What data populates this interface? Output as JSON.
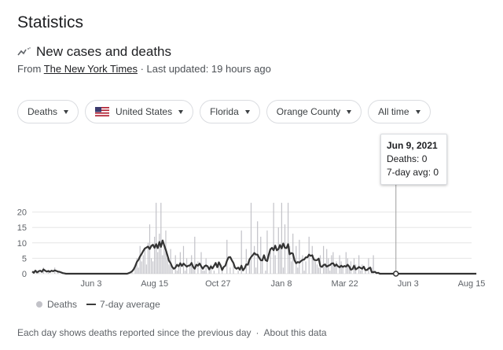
{
  "page": {
    "heading": "Statistics"
  },
  "section": {
    "title": "New cases and deaths",
    "source_prefix": "From",
    "source_name": "The New York Times",
    "updated": "· Last updated: 19 hours ago"
  },
  "filters": {
    "metric": "Deaths",
    "country": "United States",
    "state": "Florida",
    "county": "Orange County",
    "range": "All time"
  },
  "tooltip": {
    "date": "Jun 9, 2021",
    "deaths": "Deaths: 0",
    "avg": "7-day avg: 0"
  },
  "legend": {
    "deaths_label": "Deaths",
    "avg_label": "7-day average"
  },
  "footer": {
    "note": "Each day shows deaths reported since the previous day",
    "separator": "·",
    "about": "About this data"
  },
  "colors": {
    "bars": "#c2c2c8",
    "avg_line": "#333333",
    "grid": "#e6e6e6",
    "hover_line": "#9e9e9e"
  },
  "chart_data": {
    "type": "bar",
    "x_tick_labels": [
      "Jun 3",
      "Aug 15",
      "Oct 27",
      "Jan 8",
      "Mar 22",
      "Jun 3",
      "Aug 15"
    ],
    "y_ticks": [
      0,
      5,
      10,
      15,
      20
    ],
    "ylim": [
      0,
      23
    ],
    "grid": true,
    "legend_position": "bottom-left",
    "series": [
      {
        "name": "Deaths",
        "type": "bar",
        "values": [
          0,
          1,
          0,
          0,
          1,
          0,
          0,
          2,
          0,
          0,
          1,
          0,
          0,
          0,
          2,
          0,
          1,
          0,
          0,
          0,
          0,
          0,
          0,
          0,
          0,
          0,
          0,
          0,
          0,
          0,
          0,
          0,
          0,
          0,
          0,
          0,
          0,
          0,
          0,
          0,
          0,
          0,
          0,
          0,
          0,
          0,
          0,
          0,
          0,
          0,
          0,
          0,
          0,
          0,
          0,
          0,
          0,
          0,
          0,
          0,
          0,
          0,
          1,
          0,
          3,
          5,
          2,
          9,
          4,
          6,
          8,
          3,
          10,
          16,
          5,
          4,
          12,
          23,
          7,
          13,
          23,
          6,
          9,
          14,
          5,
          3,
          8,
          2,
          0,
          6,
          1,
          2,
          7,
          0,
          9,
          1,
          5,
          0,
          3,
          6,
          2,
          12,
          0,
          4,
          0,
          7,
          1,
          1,
          5,
          0,
          2,
          3,
          0,
          1,
          0,
          0,
          4,
          0,
          2,
          0,
          0,
          11,
          0,
          2,
          0,
          3,
          0,
          0,
          1,
          0,
          14,
          0,
          0,
          8,
          0,
          5,
          23,
          0,
          9,
          2,
          17,
          0,
          12,
          4,
          0,
          1,
          14,
          0,
          7,
          0,
          23,
          6,
          0,
          15,
          9,
          23,
          2,
          16,
          0,
          23,
          9,
          4,
          13,
          0,
          9,
          2,
          11,
          0,
          6,
          1,
          4,
          0,
          12,
          0,
          9,
          5,
          4,
          3,
          2,
          6,
          0,
          9,
          3,
          8,
          5,
          1,
          6,
          7,
          3,
          4,
          0,
          6,
          4,
          2,
          0,
          7,
          5,
          2,
          4,
          0,
          5,
          3,
          0,
          6,
          1,
          3,
          0,
          1,
          0,
          5,
          0,
          2,
          6,
          0,
          0,
          0,
          0,
          0,
          0,
          0,
          0,
          0,
          0,
          0,
          0,
          0,
          0,
          0,
          0,
          0,
          0,
          0,
          0,
          0,
          0,
          0,
          0,
          0,
          0,
          0,
          0,
          0,
          0,
          0,
          0,
          0,
          0,
          0,
          0,
          0,
          0,
          0,
          0,
          0,
          0,
          0,
          0,
          0,
          0,
          0,
          0,
          0,
          0,
          0,
          0,
          0,
          0,
          0,
          0,
          0,
          0,
          0,
          0,
          0
        ]
      },
      {
        "name": "7-day average",
        "type": "line",
        "values": [
          0.7,
          0.3,
          1,
          0.4,
          0.8,
          1,
          0.6,
          1.4,
          1,
          0.7,
          0.9,
          0.6,
          1,
          0.8,
          1.1,
          0.9,
          0.7,
          0.6,
          0.4,
          0.2,
          0.1,
          0,
          0,
          0,
          0,
          0,
          0,
          0,
          0,
          0,
          0,
          0,
          0,
          0,
          0,
          0,
          0,
          0,
          0,
          0,
          0,
          0,
          0,
          0,
          0,
          0,
          0,
          0,
          0,
          0,
          0,
          0,
          0,
          0,
          0,
          0,
          0,
          0,
          0,
          0,
          0.2,
          0.4,
          0.8,
          1.4,
          2.4,
          3.8,
          4.5,
          5.6,
          6.4,
          7.4,
          8.2,
          8.5,
          8.8,
          8,
          9,
          9.4,
          8.4,
          9.6,
          8.3,
          10.3,
          8.7,
          10.8,
          9.2,
          7.7,
          6,
          4.2,
          3.4,
          2.2,
          1.6,
          2,
          2.9,
          2.4,
          3.4,
          2.5,
          3.3,
          2.8,
          2.3,
          2.6,
          2.7,
          3.5,
          2.2,
          1.6,
          2.9,
          2.6,
          3.3,
          2.4,
          1.6,
          2.4,
          2.7,
          2.4,
          1.4,
          2.4,
          1.7,
          2.6,
          3.5,
          2.1,
          3.7,
          2.7,
          1.2,
          2.2,
          2.6,
          4.2,
          5.3,
          5.4,
          4.4,
          3.5,
          2,
          1.6,
          2,
          1.3,
          2.6,
          1.1,
          1.8,
          3,
          2.9,
          4.6,
          5.4,
          6,
          6.7,
          6.2,
          6.2,
          5.2,
          4.4,
          4.3,
          6,
          4.4,
          4.1,
          6.2,
          7.9,
          8.4,
          7.6,
          9.1,
          7.6,
          8,
          9.3,
          8.2,
          9.8,
          8.4,
          8.3,
          9.6,
          6.3,
          6.7,
          6.5,
          4.3,
          3.4,
          3.8,
          3.6,
          4.1,
          4.5,
          4.6,
          5.3,
          5.3,
          6.2,
          5.8,
          6,
          4.6,
          4.4,
          4.4,
          4.9,
          2.5,
          2.2,
          2.8,
          3,
          2.3,
          2.6,
          2.8,
          3.3,
          3.4,
          2.5,
          3,
          2.4,
          2.1,
          2.6,
          2.2,
          2.5,
          2.3,
          2.9,
          2.3,
          1.3,
          1.5,
          2.6,
          1.4,
          1.7,
          2.2,
          1.9,
          1.6,
          2.3,
          1.2,
          1.2,
          1.7,
          2,
          0.5,
          0.5,
          0.6,
          0.2,
          0.3,
          0,
          0,
          0,
          0,
          0,
          0,
          0,
          0,
          0,
          0,
          0,
          0,
          0,
          0,
          0,
          0,
          0,
          0,
          0,
          0,
          0,
          0,
          0,
          0,
          0,
          0,
          0,
          0,
          0,
          0,
          0,
          0,
          0,
          0,
          0,
          0,
          0,
          0,
          0,
          0,
          0,
          0,
          0,
          0,
          0,
          0,
          0,
          0,
          0,
          0,
          0,
          0,
          0,
          0,
          0,
          0,
          0,
          0,
          0,
          0,
          0
        ]
      }
    ]
  }
}
